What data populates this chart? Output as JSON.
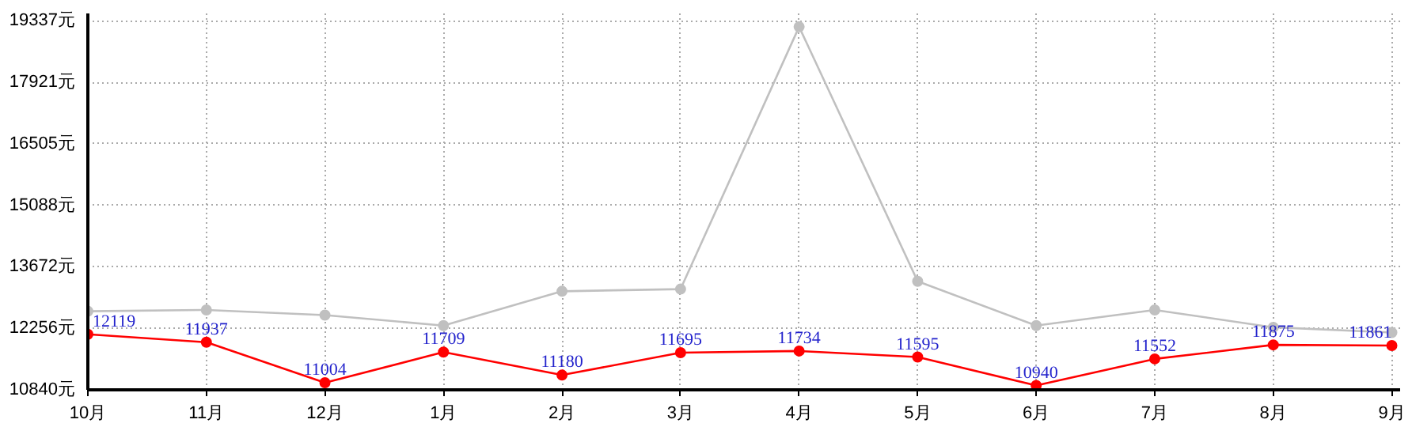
{
  "chart_data": {
    "type": "line",
    "categories": [
      "10月",
      "11月",
      "12月",
      "1月",
      "2月",
      "3月",
      "4月",
      "5月",
      "6月",
      "7月",
      "8月",
      "9月"
    ],
    "series": [
      {
        "color": "#c0c0c0",
        "values": [
          12650,
          12680,
          12560,
          12320,
          13110,
          13160,
          19200,
          13340,
          12320,
          12680,
          12280,
          12160
        ]
      },
      {
        "color": "#ff0000",
        "values": [
          12119,
          11937,
          11004,
          11709,
          11180,
          11695,
          11734,
          11595,
          10940,
          11552,
          11875,
          11861
        ],
        "value_labels": [
          "12119",
          "11937",
          "11004",
          "11709",
          "11180",
          "11695",
          "11734",
          "11595",
          "10940",
          "11552",
          "11875",
          "11861"
        ]
      }
    ],
    "ylim": [
      10840,
      19337
    ],
    "yticks": [
      {
        "value": 10840,
        "label": "10840元"
      },
      {
        "value": 12256,
        "label": "12256元"
      },
      {
        "value": 13672,
        "label": "13672元"
      },
      {
        "value": 15088,
        "label": "15088元"
      },
      {
        "value": 16505,
        "label": "16505元"
      },
      {
        "value": 17921,
        "label": "17921元"
      },
      {
        "value": 19337,
        "label": "19337元"
      }
    ],
    "grid": true,
    "marker": "circle",
    "line_style": "solid"
  }
}
